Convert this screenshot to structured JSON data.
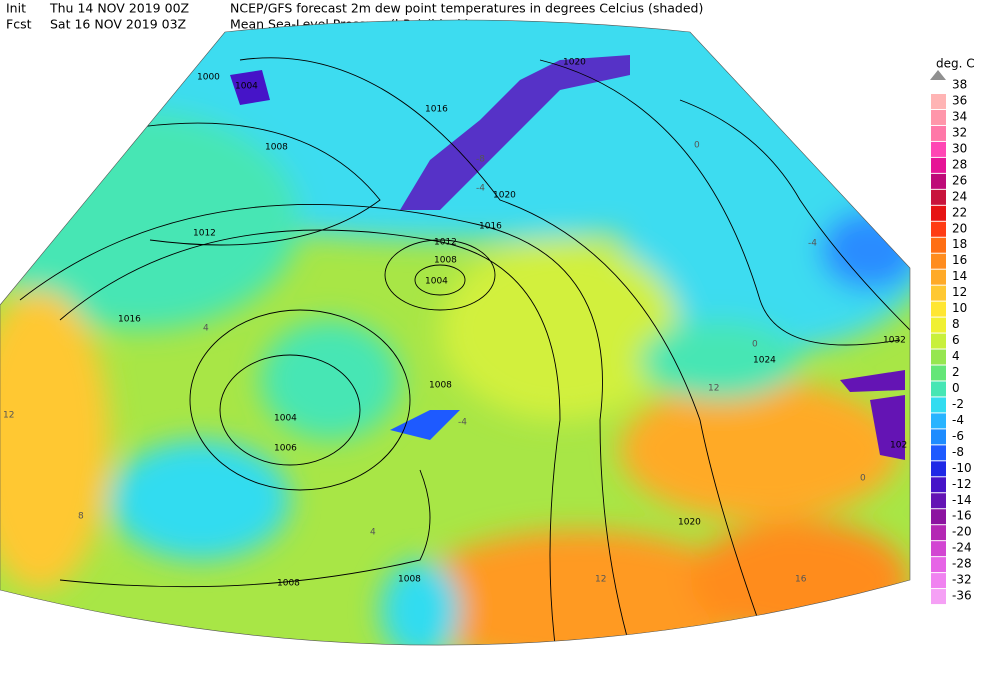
{
  "header": {
    "init_label": "Init",
    "init_time": "Thu 14 NOV 2019 00Z",
    "fcst_label": "Fcst",
    "fcst_time": "Sat 16 NOV 2019 03Z",
    "line1": "NCEP/GFS forecast 2m dew point temperatures in degrees Celcius (shaded)",
    "line2": "Mean Sea-Level Pressure (hPa) (black)."
  },
  "legend": {
    "title": "deg. C",
    "top": {
      "label": "38",
      "color": "#909090"
    },
    "entries": [
      {
        "label": "36",
        "color": "#ffb4b4"
      },
      {
        "label": "34",
        "color": "#ff96aa"
      },
      {
        "label": "32",
        "color": "#ff78a8"
      },
      {
        "label": "30",
        "color": "#ff46b4"
      },
      {
        "label": "28",
        "color": "#e61496"
      },
      {
        "label": "26",
        "color": "#be0a78"
      },
      {
        "label": "24",
        "color": "#c8143c"
      },
      {
        "label": "22",
        "color": "#e61414"
      },
      {
        "label": "20",
        "color": "#ff3c14"
      },
      {
        "label": "18",
        "color": "#ff6e14"
      },
      {
        "label": "16",
        "color": "#ff8c1e"
      },
      {
        "label": "14",
        "color": "#ffaa28"
      },
      {
        "label": "12",
        "color": "#ffc832"
      },
      {
        "label": "10",
        "color": "#ffe632"
      },
      {
        "label": "8",
        "color": "#f0f032"
      },
      {
        "label": "6",
        "color": "#c8f03c"
      },
      {
        "label": "4",
        "color": "#96e650"
      },
      {
        "label": "2",
        "color": "#64e678"
      },
      {
        "label": "0",
        "color": "#46e6b4"
      },
      {
        "label": "-2",
        "color": "#32dcf0"
      },
      {
        "label": "-4",
        "color": "#28b4ff"
      },
      {
        "label": "-6",
        "color": "#1e8cff"
      },
      {
        "label": "-8",
        "color": "#1e5aff"
      },
      {
        "label": "-10",
        "color": "#1e28e6"
      },
      {
        "label": "-12",
        "color": "#4614c8"
      },
      {
        "label": "-14",
        "color": "#6414b4"
      },
      {
        "label": "-16",
        "color": "#8c14a0"
      },
      {
        "label": "-20",
        "color": "#b428b4"
      },
      {
        "label": "-24",
        "color": "#d246d2"
      },
      {
        "label": "-28",
        "color": "#e664e6"
      },
      {
        "label": "-32",
        "color": "#f082f0"
      },
      {
        "label": "-36",
        "color": "#f5a0f5"
      }
    ]
  },
  "pressure_labels": [
    "1000",
    "1004",
    "1008",
    "1012",
    "1016",
    "1016",
    "1020",
    "1020",
    "1016",
    "1012",
    "1008",
    "1004",
    "1008",
    "1004",
    "1006",
    "1008",
    "1008",
    "1020",
    "1024",
    "1032",
    "102"
  ],
  "temperature_labels": [
    "-8",
    "-4",
    "0",
    "0",
    "4",
    "4",
    "8",
    "12",
    "12",
    "16",
    "12",
    "-4",
    "-4",
    "0"
  ]
}
